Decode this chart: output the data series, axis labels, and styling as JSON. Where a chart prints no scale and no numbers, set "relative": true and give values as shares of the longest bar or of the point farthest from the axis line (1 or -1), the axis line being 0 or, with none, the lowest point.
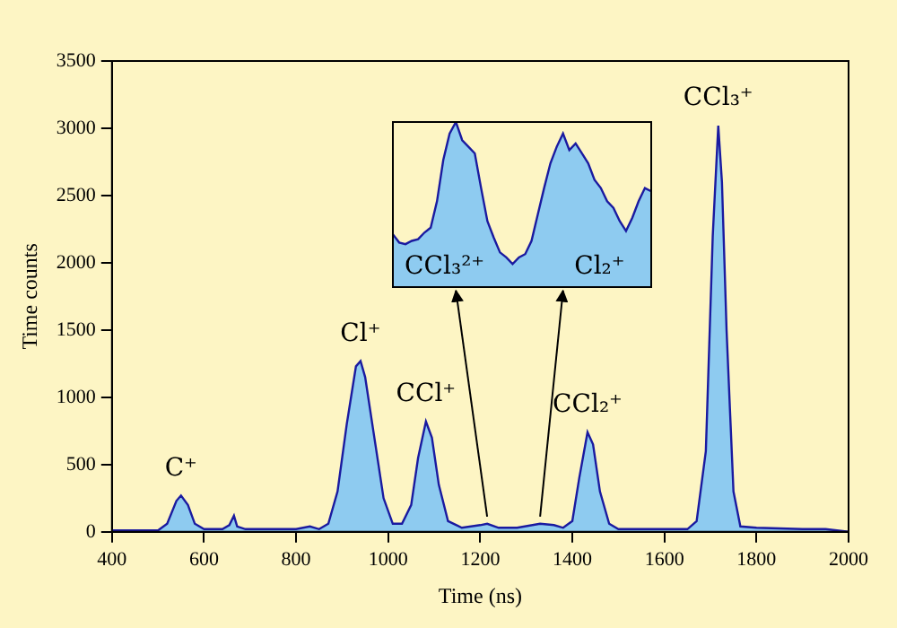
{
  "chart_data": [
    {
      "type": "area",
      "xlabel": "Time (ns)",
      "ylabel": "Time counts",
      "xlim": [
        400,
        2000
      ],
      "xticks": [
        400,
        600,
        800,
        1000,
        1200,
        1400,
        1600,
        1800,
        2000
      ],
      "ylim": [
        0,
        3500
      ],
      "yticks": [
        0,
        500,
        1000,
        1500,
        2000,
        2500,
        3000,
        3500
      ],
      "grid": false,
      "legend": false,
      "marker": "none",
      "series": [
        {
          "color": "#8ecbf0",
          "x": [
            400,
            500,
            520,
            540,
            550,
            565,
            580,
            600,
            640,
            655,
            665,
            672,
            690,
            800,
            830,
            850,
            870,
            890,
            910,
            930,
            940,
            950,
            970,
            990,
            1010,
            1030,
            1050,
            1065,
            1082,
            1095,
            1110,
            1130,
            1160,
            1200,
            1215,
            1240,
            1280,
            1330,
            1360,
            1380,
            1400,
            1415,
            1433,
            1445,
            1460,
            1480,
            1500,
            1600,
            1650,
            1670,
            1690,
            1705,
            1717,
            1725,
            1735,
            1750,
            1765,
            1800,
            1900,
            1950,
            2000
          ],
          "values": [
            10,
            10,
            60,
            230,
            270,
            200,
            60,
            20,
            20,
            50,
            120,
            40,
            20,
            20,
            40,
            20,
            60,
            300,
            800,
            1230,
            1270,
            1150,
            700,
            250,
            60,
            60,
            200,
            550,
            820,
            700,
            350,
            80,
            30,
            50,
            60,
            30,
            30,
            60,
            50,
            30,
            80,
            400,
            740,
            650,
            300,
            60,
            20,
            20,
            20,
            80,
            600,
            2200,
            3020,
            2600,
            1500,
            300,
            40,
            30,
            20,
            20,
            0
          ]
        }
      ],
      "annotations": [
        {
          "text": "C⁺",
          "x": 550,
          "y": 270
        },
        {
          "text": "Cl⁺",
          "x": 940,
          "y": 1270
        },
        {
          "text": "CCl⁺",
          "x": 1082,
          "y": 820
        },
        {
          "text": "CCl₂⁺",
          "x": 1433,
          "y": 740
        },
        {
          "text": "CCl₃⁺",
          "x": 1717,
          "y": 3020
        }
      ]
    },
    {
      "type": "area",
      "relative": true,
      "grid": false,
      "legend": false,
      "marker": "none",
      "categories": [
        null,
        null,
        null,
        null,
        null,
        null,
        null,
        null,
        null,
        null,
        null,
        null,
        null,
        null,
        null,
        null,
        null,
        null,
        null,
        null,
        null,
        null,
        null,
        null,
        null,
        null,
        null,
        null,
        null,
        null,
        null,
        null,
        null,
        null,
        null,
        null,
        null,
        null,
        null,
        null,
        null,
        null
      ],
      "series": [
        {
          "color": "#8ecbf0",
          "values": [
            0.32,
            0.27,
            0.26,
            0.28,
            0.29,
            0.33,
            0.36,
            0.52,
            0.77,
            0.93,
            1,
            0.89,
            0.85,
            0.81,
            0.6,
            0.4,
            0.3,
            0.21,
            0.18,
            0.14,
            0.18,
            0.2,
            0.28,
            0.44,
            0.6,
            0.75,
            0.85,
            0.93,
            0.83,
            0.87,
            0.81,
            0.75,
            0.65,
            0.6,
            0.52,
            0.48,
            0.4,
            0.34,
            0.42,
            0.52,
            0.6,
            0.58
          ]
        }
      ],
      "annotations": [
        "CCl₃²⁺",
        "Cl₂⁺"
      ]
    }
  ]
}
